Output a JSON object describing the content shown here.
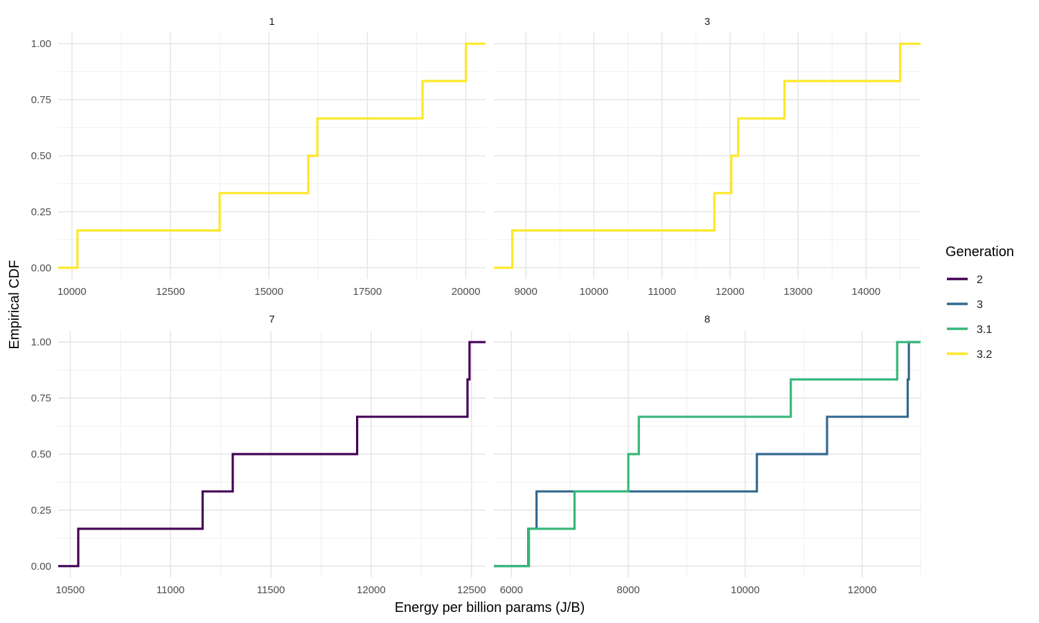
{
  "chart_data": {
    "type": "line",
    "subtype": "ecdf-step",
    "xlabel": "Energy per billion params (J/B)",
    "ylabel": "Empirical CDF",
    "legend": {
      "title": "Generation",
      "position": "right",
      "entries": [
        {
          "name": "2",
          "color": "#440154"
        },
        {
          "name": "3",
          "color": "#31688e"
        },
        {
          "name": "3.1",
          "color": "#35b779"
        },
        {
          "name": "3.2",
          "color": "#fde725"
        }
      ]
    },
    "grid": true,
    "y_ticks": [
      "0.00",
      "0.25",
      "0.50",
      "0.75",
      "1.00"
    ],
    "ylim": [
      0,
      1
    ],
    "panels": [
      {
        "label": "1",
        "xlim": [
          9650,
          20500
        ],
        "x_ticks": [
          10000,
          12500,
          15000,
          17500,
          20000
        ],
        "series": [
          {
            "name": "3.2",
            "x": [
              10140,
              13750,
              16000,
              16230,
              18900,
              20000
            ]
          }
        ]
      },
      {
        "label": "3",
        "xlim": [
          8530,
          14800
        ],
        "x_ticks": [
          9000,
          10000,
          11000,
          12000,
          13000,
          14000
        ],
        "series": [
          {
            "name": "3.2",
            "x": [
              8800,
              11770,
              12020,
              12120,
              12800,
              14500
            ]
          }
        ]
      },
      {
        "label": "7",
        "xlim": [
          10440,
          12570
        ],
        "x_ticks": [
          10500,
          11000,
          11500,
          12000,
          12500
        ],
        "series": [
          {
            "name": "2",
            "x": [
              10540,
              11160,
              11310,
              11930,
              12480,
              12490
            ]
          }
        ]
      },
      {
        "label": "8",
        "xlim": [
          5700,
          13000
        ],
        "x_ticks": [
          6000,
          8000,
          10000,
          12000
        ],
        "series": [
          {
            "name": "3",
            "x": [
              6290,
              6430,
              10200,
              11400,
              12780,
              12800
            ]
          },
          {
            "name": "3.1",
            "x": [
              6300,
              7080,
              8000,
              8180,
              10780,
              12600
            ]
          }
        ]
      }
    ]
  }
}
